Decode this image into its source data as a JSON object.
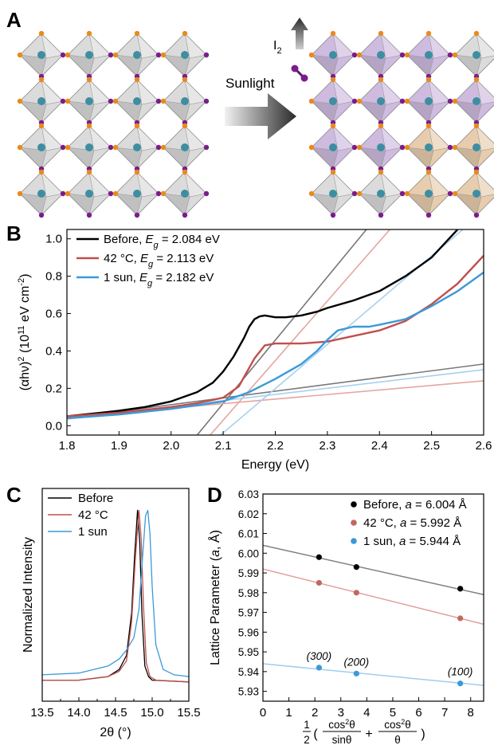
{
  "panel_A": {
    "letter": "A",
    "arrow_label": "Sunlight",
    "gas_label_main": "I",
    "gas_label_sub": "2",
    "colors": {
      "octahedron_gray": "#bdbdbd",
      "octahedron_purple": "#a783c4",
      "octahedron_orange": "#d3a46a",
      "atom_purple": "#7a1c8c",
      "atom_orange": "#e98a1a",
      "atom_center": "#3d8ea3"
    },
    "initial_lattice": [
      [
        "gray",
        "gray",
        "gray",
        "gray"
      ],
      [
        "gray",
        "gray",
        "gray",
        "gray"
      ],
      [
        "gray",
        "gray",
        "gray",
        "gray"
      ],
      [
        "gray",
        "gray",
        "gray",
        "gray"
      ]
    ],
    "final_lattice": [
      [
        "purple",
        "purple",
        "purple",
        "gray"
      ],
      [
        "purple",
        "purple",
        "purple",
        "purple"
      ],
      [
        "purple",
        "purple",
        "orange",
        "orange"
      ],
      [
        "gray",
        "gray",
        "orange",
        "orange"
      ]
    ]
  },
  "chart_data": [
    {
      "panel": "B",
      "type": "line",
      "xlabel": "Energy (eV)",
      "ylabel_parts": [
        "(αhν)",
        "2",
        " (10",
        "11",
        " eV cm",
        "-2",
        ")"
      ],
      "xlim": [
        1.8,
        2.6
      ],
      "ylim": [
        -0.05,
        1.05
      ],
      "xticks": [
        "1.8",
        "1.9",
        "2.0",
        "2.1",
        "2.2",
        "2.3",
        "2.4",
        "2.5",
        "2.6"
      ],
      "yticks": [
        "0.0",
        "0.2",
        "0.4",
        "0.6",
        "0.8",
        "1.0"
      ],
      "legend_position": "top-left",
      "series": [
        {
          "name": "Before, ",
          "eg_symbol": "E",
          "eg_sub": "g",
          "eg_value": " = 2.084 eV",
          "color": "#000000",
          "x": [
            1.8,
            1.9,
            1.95,
            2.0,
            2.05,
            2.08,
            2.1,
            2.12,
            2.14,
            2.15,
            2.16,
            2.17,
            2.18,
            2.2,
            2.22,
            2.25,
            2.28,
            2.3,
            2.35,
            2.4,
            2.45,
            2.5,
            2.55
          ],
          "y": [
            0.05,
            0.08,
            0.1,
            0.13,
            0.18,
            0.23,
            0.29,
            0.37,
            0.47,
            0.53,
            0.57,
            0.585,
            0.59,
            0.58,
            0.58,
            0.59,
            0.61,
            0.63,
            0.67,
            0.72,
            0.8,
            0.9,
            1.05
          ]
        },
        {
          "name": "42 °C, ",
          "eg_symbol": "E",
          "eg_sub": "g",
          "eg_value": " = 2.113 eV",
          "color": "#c0504d",
          "x": [
            1.8,
            1.9,
            2.0,
            2.05,
            2.1,
            2.13,
            2.15,
            2.16,
            2.18,
            2.2,
            2.25,
            2.3,
            2.35,
            2.4,
            2.45,
            2.5,
            2.55,
            2.6
          ],
          "y": [
            0.05,
            0.07,
            0.1,
            0.12,
            0.15,
            0.21,
            0.31,
            0.36,
            0.43,
            0.44,
            0.44,
            0.45,
            0.48,
            0.51,
            0.56,
            0.65,
            0.76,
            0.91
          ]
        },
        {
          "name": "1 sun, ",
          "eg_symbol": "E",
          "eg_sub": "g",
          "eg_value": " = 2.182 eV",
          "color": "#3a9ad9",
          "x": [
            1.8,
            1.9,
            2.0,
            2.05,
            2.1,
            2.15,
            2.2,
            2.25,
            2.28,
            2.3,
            2.32,
            2.35,
            2.38,
            2.4,
            2.45,
            2.5,
            2.55,
            2.6
          ],
          "y": [
            0.04,
            0.06,
            0.09,
            0.11,
            0.13,
            0.18,
            0.25,
            0.33,
            0.4,
            0.46,
            0.51,
            0.53,
            0.53,
            0.54,
            0.57,
            0.64,
            0.72,
            0.82
          ]
        }
      ],
      "fit_lines": [
        {
          "color": "#777777",
          "x": [
            2.05,
            2.375
          ],
          "y": [
            -0.05,
            1.05
          ]
        },
        {
          "color": "#7a7a7a",
          "x": [
            1.8,
            2.6
          ],
          "y": [
            0.04,
            0.33
          ]
        },
        {
          "color": "#e4a6a0",
          "x": [
            2.075,
            2.42
          ],
          "y": [
            -0.05,
            1.05
          ]
        },
        {
          "color": "#e4a6a0",
          "x": [
            1.8,
            2.6
          ],
          "y": [
            0.045,
            0.24
          ]
        },
        {
          "color": "#a8d0ef",
          "x": [
            2.095,
            2.56
          ],
          "y": [
            -0.05,
            1.05
          ]
        },
        {
          "color": "#a8d0ef",
          "x": [
            1.8,
            2.6
          ],
          "y": [
            0.035,
            0.3
          ]
        }
      ]
    },
    {
      "panel": "C",
      "type": "line",
      "xlabel": "2θ (°)",
      "ylabel": "Normalized Intensity",
      "xlim": [
        13.5,
        15.5
      ],
      "ylim": [
        0,
        1.05
      ],
      "xticks": [
        "13.5",
        "14.0",
        "14.5",
        "15.0",
        "15.5"
      ],
      "legend_position": "top-right",
      "series": [
        {
          "name": "Before",
          "color": "#000000",
          "x": [
            13.5,
            14.0,
            14.4,
            14.55,
            14.65,
            14.72,
            14.76,
            14.8,
            14.83,
            14.86,
            14.9,
            14.95,
            15.0,
            15.5
          ],
          "y": [
            0.02,
            0.02,
            0.04,
            0.08,
            0.16,
            0.4,
            0.72,
            0.98,
            0.8,
            0.4,
            0.1,
            0.04,
            0.02,
            0.01
          ]
        },
        {
          "name": "42 °C",
          "color": "#c0504d",
          "x": [
            13.5,
            14.0,
            14.4,
            14.55,
            14.65,
            14.72,
            14.77,
            14.82,
            14.85,
            14.88,
            14.92,
            14.97,
            15.05,
            15.5
          ],
          "y": [
            0.02,
            0.02,
            0.04,
            0.07,
            0.13,
            0.35,
            0.7,
            0.98,
            0.82,
            0.45,
            0.12,
            0.04,
            0.02,
            0.01
          ]
        },
        {
          "name": "1 sun",
          "color": "#3a9ad9",
          "x": [
            13.5,
            14.0,
            14.4,
            14.55,
            14.65,
            14.75,
            14.82,
            14.87,
            14.91,
            14.94,
            14.97,
            15.0,
            15.05,
            15.15,
            15.3,
            15.5
          ],
          "y": [
            0.05,
            0.06,
            0.1,
            0.14,
            0.19,
            0.26,
            0.42,
            0.72,
            0.95,
            0.98,
            0.85,
            0.55,
            0.22,
            0.08,
            0.05,
            0.04
          ]
        }
      ]
    },
    {
      "panel": "D",
      "type": "scatter",
      "ylabel_parts": [
        "Lattice Parameter (",
        "a",
        ", Å)"
      ],
      "xlim": [
        0,
        8.5
      ],
      "ylim": [
        5.925,
        6.03
      ],
      "xticks": [
        "0",
        "1",
        "2",
        "3",
        "4",
        "5",
        "6",
        "7",
        "8"
      ],
      "yticks": [
        "5.93",
        "5.94",
        "5.95",
        "5.96",
        "5.97",
        "5.98",
        "5.99",
        "6.00",
        "6.01",
        "6.02",
        "6.03"
      ],
      "legend_position": "top-right",
      "x_points": [
        2.16,
        3.6,
        7.6
      ],
      "point_labels": [
        "(300)",
        "(200)",
        "(100)"
      ],
      "series": [
        {
          "name": "Before, ",
          "param_symbol": "a",
          "param_value": " = 6.004 Å",
          "color": "#000000",
          "fit_color": "#808080",
          "y": [
            5.998,
            5.993,
            5.982
          ],
          "fit_x": [
            0,
            8.5
          ],
          "fit_y": [
            6.004,
            5.979
          ]
        },
        {
          "name": "42 °C, ",
          "param_symbol": "a",
          "param_value": " = 5.992 Å",
          "color": "#c0685f",
          "fit_color": "#e0a09a",
          "y": [
            5.985,
            5.98,
            5.967
          ],
          "fit_x": [
            0,
            8.5
          ],
          "fit_y": [
            5.992,
            5.964
          ]
        },
        {
          "name": "1 sun, ",
          "param_symbol": "a",
          "param_value": " = 5.944 Å",
          "color": "#3a9ad9",
          "fit_color": "#9fcdee",
          "y": [
            5.942,
            5.939,
            5.934
          ],
          "fit_x": [
            0,
            8.5
          ],
          "fit_y": [
            5.944,
            5.933
          ]
        }
      ]
    }
  ]
}
